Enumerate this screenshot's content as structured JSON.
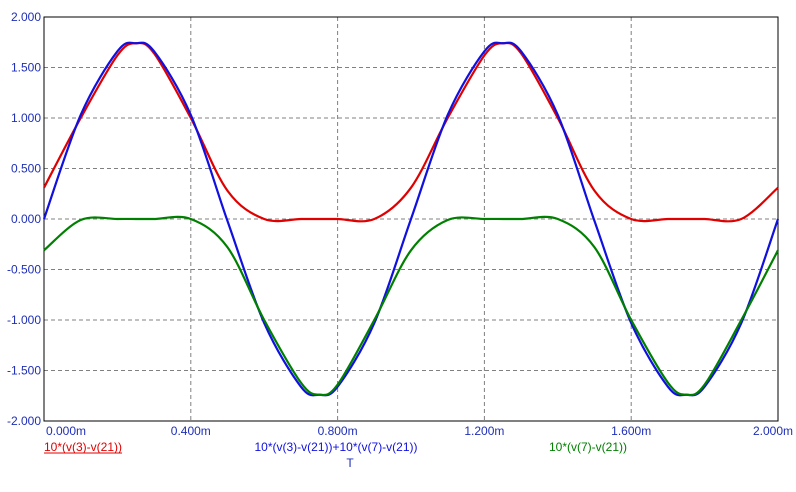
{
  "chart_data": {
    "type": "line",
    "title": "",
    "xlabel": "T",
    "ylabel": "",
    "xlim": [
      0,
      0.002
    ],
    "ylim": [
      -2.0,
      2.0
    ],
    "grid": true,
    "x_ticks": [
      {
        "value": 0,
        "label": "0.000m"
      },
      {
        "value": 0.0004,
        "label": "0.400m"
      },
      {
        "value": 0.0008,
        "label": "0.800m"
      },
      {
        "value": 0.0012,
        "label": "1.200m"
      },
      {
        "value": 0.0016,
        "label": "1.600m"
      },
      {
        "value": 0.002,
        "label": "2.000m"
      }
    ],
    "y_ticks": [
      {
        "value": 2.0,
        "label": "2.000"
      },
      {
        "value": 1.5,
        "label": "1.500"
      },
      {
        "value": 1.0,
        "label": "1.000"
      },
      {
        "value": 0.5,
        "label": "0.500"
      },
      {
        "value": 0.0,
        "label": "0.000"
      },
      {
        "value": -0.5,
        "label": "-0.500"
      },
      {
        "value": -1.0,
        "label": "-1.000"
      },
      {
        "value": -1.5,
        "label": "-1.500"
      },
      {
        "value": -2.0,
        "label": "-2.000"
      }
    ],
    "x": [
      0,
      0.0001,
      0.0002,
      0.00025,
      0.0003,
      0.0004,
      0.0005,
      0.0006,
      0.0007,
      0.00075,
      0.0008,
      0.0009,
      0.001,
      0.0011,
      0.0012,
      0.00125,
      0.0013,
      0.0014,
      0.0015,
      0.0016,
      0.0017,
      0.00175,
      0.0018,
      0.0019,
      0.002
    ],
    "series": [
      {
        "name": "10*(v(3)-v(21))",
        "color": "#e00000",
        "values": [
          0.31,
          1.0,
          1.62,
          1.74,
          1.64,
          1.0,
          0.28,
          0.0,
          0.0,
          0.0,
          0.0,
          0.0,
          0.31,
          1.0,
          1.62,
          1.74,
          1.64,
          1.0,
          0.28,
          0.0,
          0.0,
          0.0,
          0.0,
          0.0,
          0.31
        ]
      },
      {
        "name": "10*(v(3)-v(21))+10*(v(7)-v(21))",
        "color": "#1010e0",
        "values": [
          0.0,
          1.03,
          1.66,
          1.74,
          1.66,
          1.03,
          -0.02,
          -1.03,
          -1.66,
          -1.74,
          -1.66,
          -1.03,
          0.0,
          1.03,
          1.66,
          1.74,
          1.66,
          1.03,
          -0.02,
          -1.03,
          -1.66,
          -1.74,
          -1.66,
          -1.03,
          0.0
        ]
      },
      {
        "name": "10*(v(7)-v(21))",
        "color": "#008000",
        "values": [
          -0.31,
          -0.01,
          0.0,
          0.0,
          0.0,
          0.0,
          -0.28,
          -1.0,
          -1.62,
          -1.74,
          -1.64,
          -1.0,
          -0.31,
          -0.01,
          0.0,
          0.0,
          0.0,
          0.0,
          -0.28,
          -1.0,
          -1.62,
          -1.74,
          -1.64,
          -1.0,
          -0.31
        ]
      }
    ]
  }
}
